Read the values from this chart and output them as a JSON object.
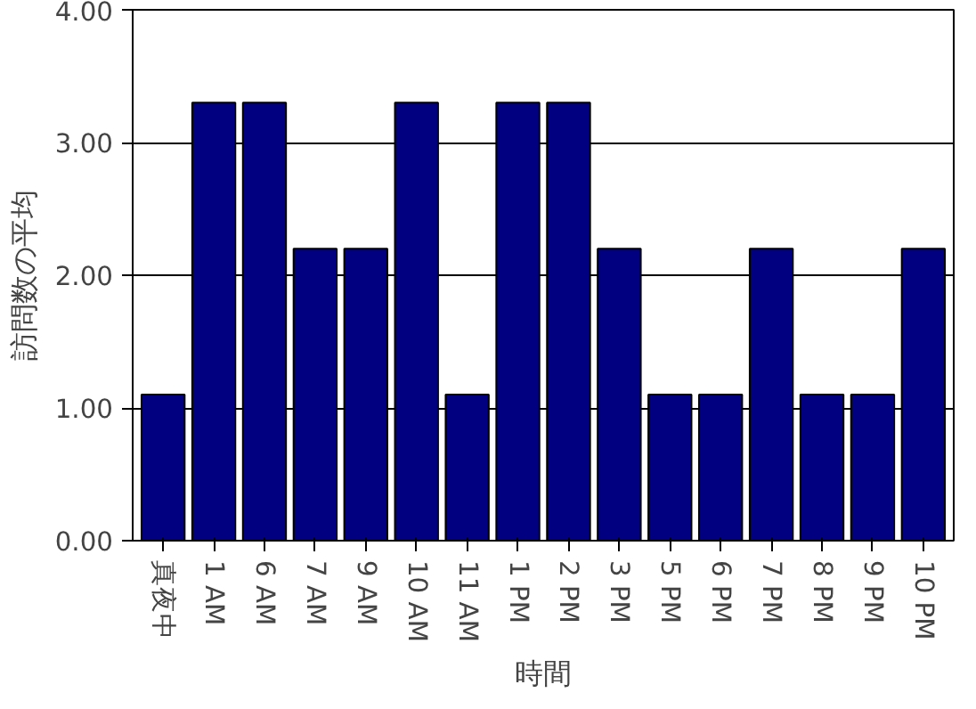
{
  "chart_data": {
    "type": "bar",
    "xlabel": "時間",
    "ylabel": "訪問数の平均",
    "categories": [
      "真夜中",
      "1 AM",
      "6 AM",
      "7 AM",
      "9 AM",
      "10 AM",
      "11 AM",
      "1 PM",
      "2 PM",
      "3 PM",
      "5 PM",
      "6 PM",
      "7 PM",
      "8 PM",
      "9 PM",
      "10 PM"
    ],
    "values": [
      1.1,
      3.3,
      3.3,
      2.2,
      2.2,
      3.3,
      1.1,
      3.3,
      3.3,
      2.2,
      1.1,
      1.1,
      2.2,
      1.1,
      1.1,
      2.2
    ],
    "color": "#000080",
    "ylim": [
      0,
      4
    ],
    "yticks": [
      {
        "value": 0,
        "label": "0.00"
      },
      {
        "value": 1,
        "label": "1.00"
      },
      {
        "value": 2,
        "label": "2.00"
      },
      {
        "value": 3,
        "label": "3.00"
      },
      {
        "value": 4,
        "label": "4.00"
      }
    ],
    "grid": "y"
  }
}
